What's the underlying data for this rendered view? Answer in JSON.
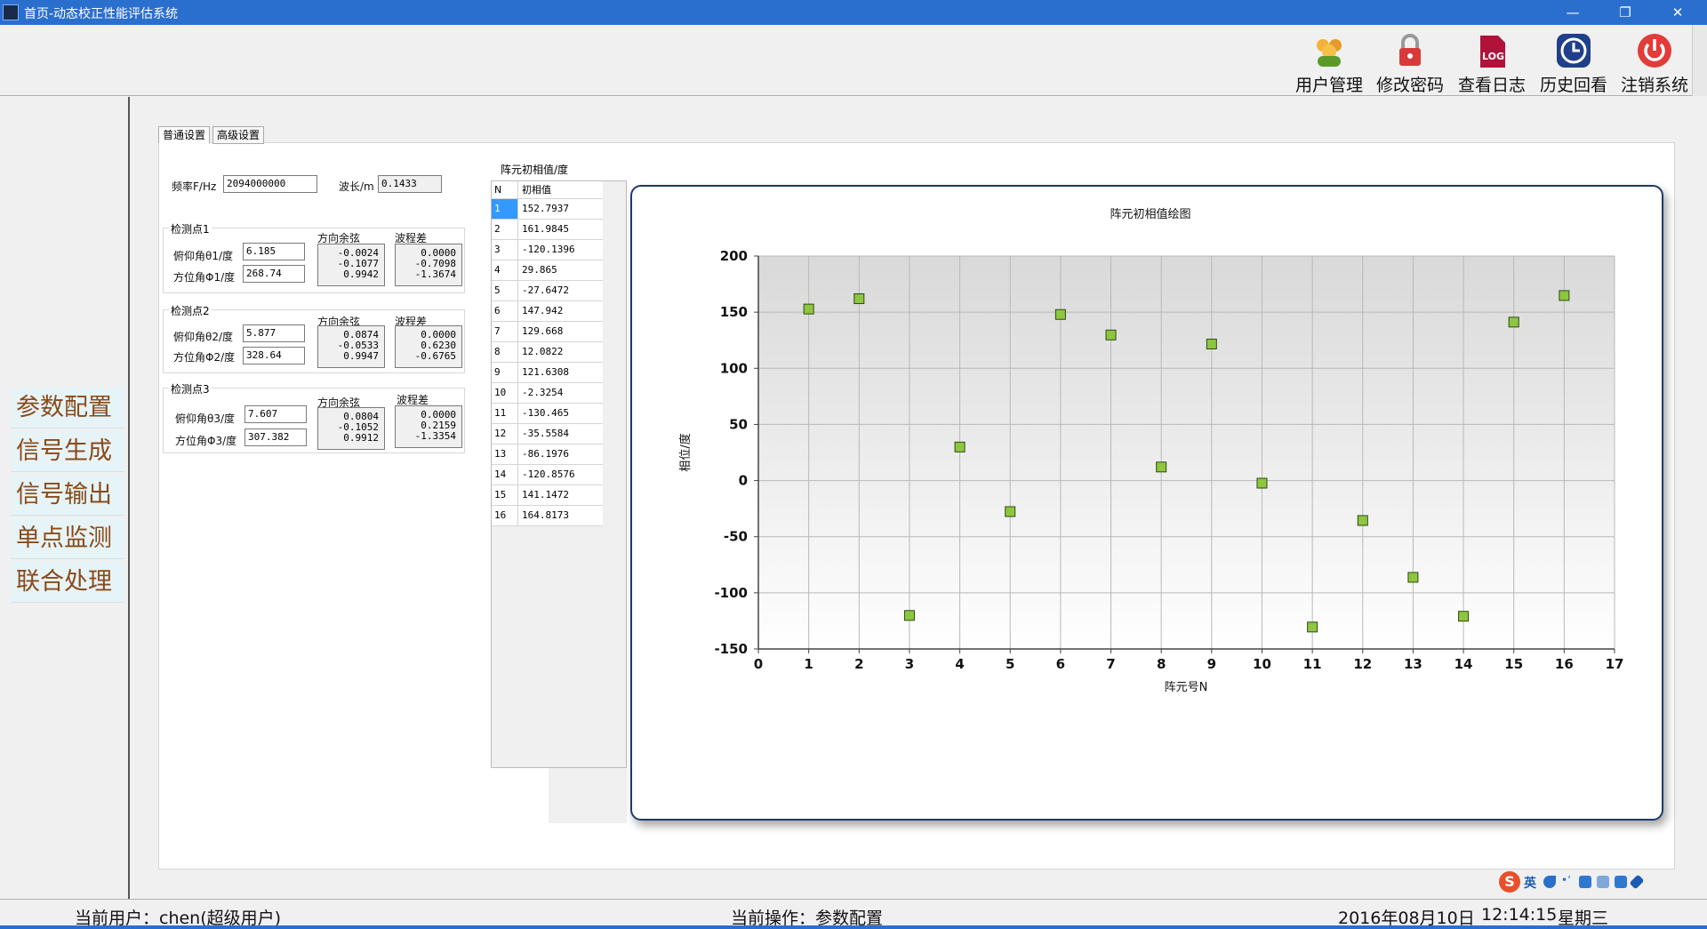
{
  "window": {
    "title": "首页-动态校正性能评估系统"
  },
  "toolbar": {
    "items": [
      {
        "label": "用户管理",
        "icon": "users-icon",
        "color": "#e0a020"
      },
      {
        "label": "修改密码",
        "icon": "lock-icon",
        "color": "#d84040"
      },
      {
        "label": "查看日志",
        "icon": "log-icon",
        "color": "#b0123a"
      },
      {
        "label": "历史回看",
        "icon": "clock-icon",
        "color": "#1f4fa8"
      },
      {
        "label": "注销系统",
        "icon": "power-icon",
        "color": "#e03030"
      }
    ]
  },
  "sidebar": {
    "items": [
      {
        "label": "参数配置"
      },
      {
        "label": "信号生成"
      },
      {
        "label": "信号输出"
      },
      {
        "label": "单点监测"
      },
      {
        "label": "联合处理"
      }
    ]
  },
  "tabs": [
    {
      "label": "普通设置",
      "active": true
    },
    {
      "label": "高级设置",
      "active": false
    }
  ],
  "settings": {
    "freq_label": "频率F/Hz",
    "freq_value": "2094000000",
    "wavelength_label": "波长/m",
    "wavelength_value": "0.1433",
    "points": [
      {
        "title": "检测点1",
        "elev_label": "俯仰角θ1/度",
        "elev_value": "6.185",
        "azim_label": "方位角Φ1/度",
        "azim_value": "268.74",
        "cos_label": "方向余弦",
        "cos_values": [
          "-0.0024",
          "-0.1077",
          "0.9942"
        ],
        "diff_label": "波程差",
        "diff_values": [
          "0.0000",
          "-0.7098",
          "-1.3674"
        ]
      },
      {
        "title": "检测点2",
        "elev_label": "俯仰角θ2/度",
        "elev_value": "5.877",
        "azim_label": "方位角Φ2/度",
        "azim_value": "328.64",
        "cos_label": "方向余弦",
        "cos_values": [
          "0.0874",
          "-0.0533",
          "0.9947"
        ],
        "diff_label": "波程差",
        "diff_values": [
          "0.0000",
          "0.6230",
          "-0.6765"
        ]
      },
      {
        "title": "检测点3",
        "elev_label": "俯仰角θ3/度",
        "elev_value": "7.607",
        "azim_label": "方位角Φ3/度",
        "azim_value": "307.382",
        "cos_label": "方向余弦",
        "cos_values": [
          "0.0804",
          "-0.1052",
          "0.9912"
        ],
        "diff_label": "波程差",
        "diff_values": [
          "0.0000",
          "0.2159",
          "-1.3354"
        ]
      }
    ]
  },
  "phase_table": {
    "title": "阵元初相值/度",
    "headers": [
      "N",
      "初相值"
    ],
    "rows": [
      [
        "1",
        "152.7937"
      ],
      [
        "2",
        "161.9845"
      ],
      [
        "3",
        "-120.1396"
      ],
      [
        "4",
        "29.865"
      ],
      [
        "5",
        "-27.6472"
      ],
      [
        "6",
        "147.942"
      ],
      [
        "7",
        "129.668"
      ],
      [
        "8",
        "12.0822"
      ],
      [
        "9",
        "121.6308"
      ],
      [
        "10",
        "-2.3254"
      ],
      [
        "11",
        "-130.465"
      ],
      [
        "12",
        "-35.5584"
      ],
      [
        "13",
        "-86.1976"
      ],
      [
        "14",
        "-120.8576"
      ],
      [
        "15",
        "141.1472"
      ],
      [
        "16",
        "164.8173"
      ]
    ]
  },
  "chart_data": {
    "type": "scatter",
    "title": "阵元初相值绘图",
    "xlabel": "阵元号N",
    "ylabel": "相位/度",
    "xlim": [
      0,
      17
    ],
    "ylim": [
      -150,
      200
    ],
    "xticks": [
      0,
      1,
      2,
      3,
      4,
      5,
      6,
      7,
      8,
      9,
      10,
      11,
      12,
      13,
      14,
      15,
      16,
      17
    ],
    "yticks": [
      -150,
      -100,
      -50,
      0,
      50,
      100,
      150,
      200
    ],
    "grid": true,
    "marker_color": "#8dc63f",
    "x": [
      1,
      2,
      3,
      4,
      5,
      6,
      7,
      8,
      9,
      10,
      11,
      12,
      13,
      14,
      15,
      16
    ],
    "y": [
      152.7937,
      161.9845,
      -120.1396,
      29.865,
      -27.6472,
      147.942,
      129.668,
      12.0822,
      121.6308,
      -2.3254,
      -130.465,
      -35.5584,
      -86.1976,
      -120.8576,
      141.1472,
      164.8173
    ]
  },
  "status": {
    "user": "当前用户：chen(超级用户)",
    "operation": "当前操作：参数配置",
    "date": "2016年08月10日",
    "time": "12:14:15",
    "weekday": "星期三"
  },
  "ime": {
    "logo": "S",
    "lang": "英"
  }
}
